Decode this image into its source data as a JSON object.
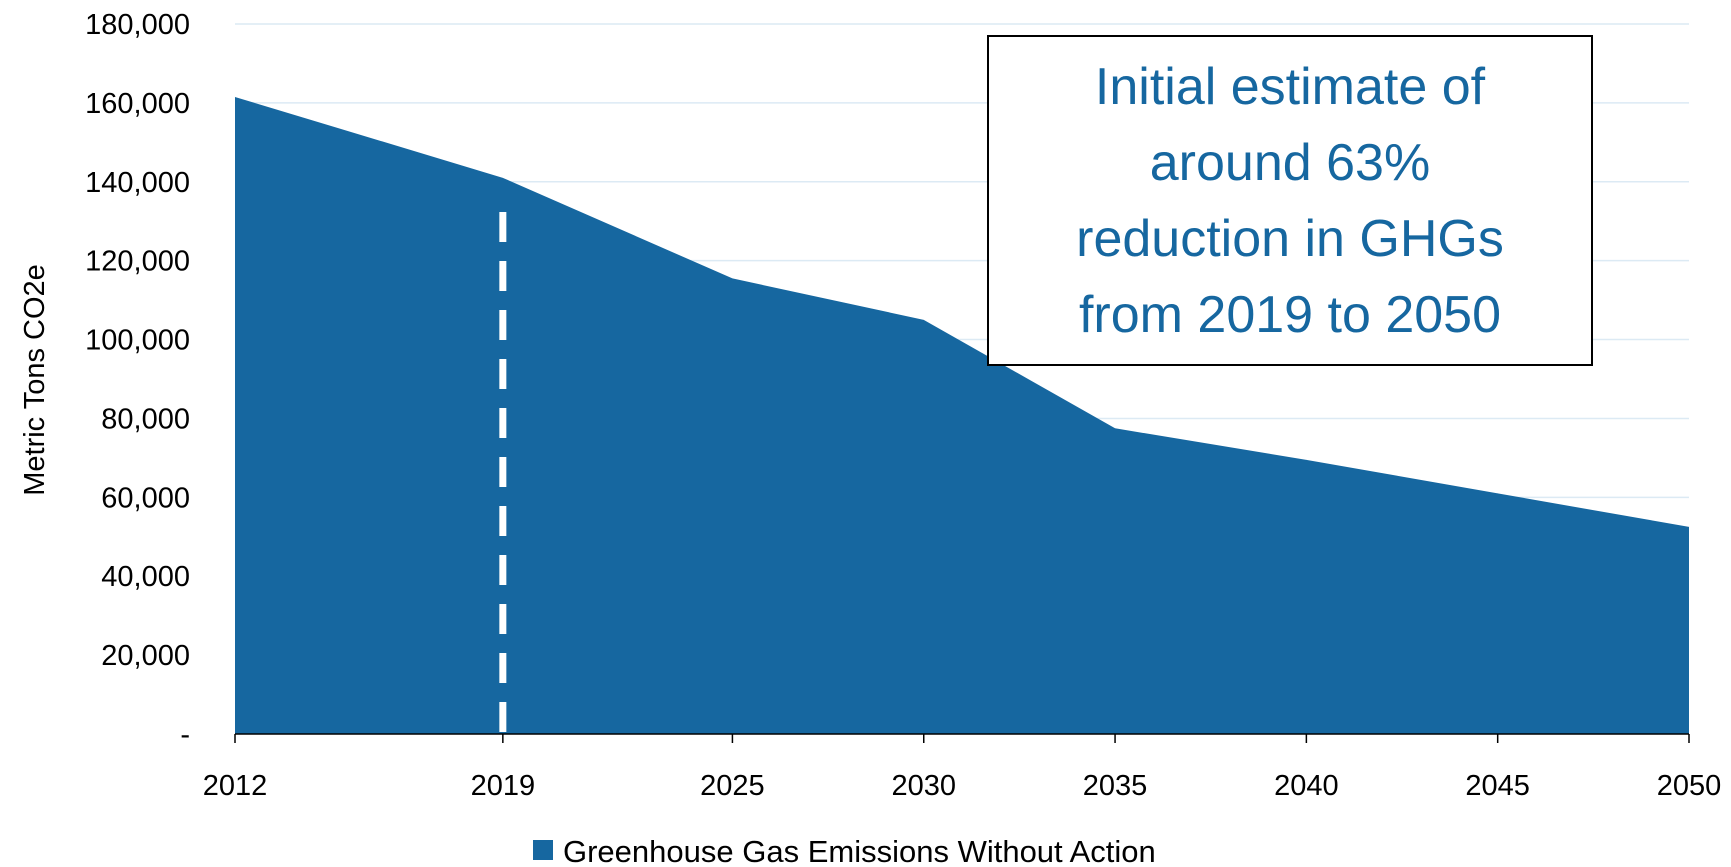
{
  "chart_data": {
    "type": "area",
    "x": [
      "2012",
      "2019",
      "2025",
      "2030",
      "2035",
      "2040",
      "2045",
      "2050"
    ],
    "series": [
      {
        "name": "Greenhouse Gas Emissions Without Action",
        "values": [
          161500,
          141000,
          115500,
          105000,
          77500,
          69500,
          61000,
          52500
        ],
        "color": "#1667A0"
      }
    ],
    "xlabel": "",
    "ylabel": "Metric Tons CO2e",
    "ylim": [
      0,
      180000
    ],
    "y_ticks": [
      {
        "value": 0,
        "label": "-"
      },
      {
        "value": 20000,
        "label": "20,000"
      },
      {
        "value": 40000,
        "label": "40,000"
      },
      {
        "value": 60000,
        "label": "60,000"
      },
      {
        "value": 80000,
        "label": "80,000"
      },
      {
        "value": 100000,
        "label": "100,000"
      },
      {
        "value": 120000,
        "label": "120,000"
      },
      {
        "value": 140000,
        "label": "140,000"
      },
      {
        "value": 160000,
        "label": "160,000"
      },
      {
        "value": 180000,
        "label": "180,000"
      }
    ],
    "grid": true,
    "legend_position": "bottom",
    "marker_line": {
      "x": "2019",
      "style": "dashed",
      "color": "#ffffff"
    },
    "annotation": {
      "lines": [
        "Initial estimate of",
        "around 63%",
        "reduction in GHGs",
        "from 2019 to 2050"
      ],
      "color": "#1667A0",
      "position": "top-right"
    },
    "grid_color": "#DCEAF4"
  }
}
